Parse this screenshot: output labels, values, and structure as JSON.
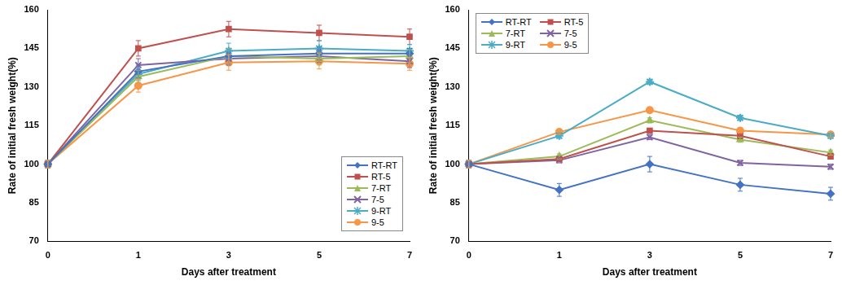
{
  "chart_data": [
    {
      "type": "line",
      "x_label": "Days after treatment",
      "y_label": "Rate of initial fresh weight(%)",
      "categories": [
        "0",
        "1",
        "3",
        "5",
        "7"
      ],
      "ylim": [
        70,
        160
      ],
      "yticks": [
        70,
        85,
        100,
        115,
        130,
        145,
        160
      ],
      "grid": false,
      "legend": "lower right",
      "series": [
        {
          "name": "RT-RT",
          "color": "#4472c4",
          "marker": "diamond",
          "values": [
            100,
            136,
            142,
            143,
            143
          ],
          "errors": [
            1.5,
            2.5,
            3,
            2.5,
            2
          ]
        },
        {
          "name": "RT-5",
          "color": "#c0504d",
          "marker": "square",
          "values": [
            100,
            145,
            152.5,
            151,
            149.5
          ],
          "errors": [
            1.5,
            3,
            3,
            3,
            3
          ]
        },
        {
          "name": "7-RT",
          "color": "#9bbb59",
          "marker": "triangle",
          "values": [
            100,
            134,
            142,
            141,
            142
          ],
          "errors": [
            1.5,
            2.5,
            3,
            2.5,
            2.5
          ]
        },
        {
          "name": "7-5",
          "color": "#8064a2",
          "marker": "x",
          "values": [
            100,
            138.5,
            141,
            142,
            140
          ],
          "errors": [
            1.5,
            2.5,
            2.5,
            2.5,
            2.5
          ]
        },
        {
          "name": "9-RT",
          "color": "#4bacc6",
          "marker": "star",
          "values": [
            100,
            135,
            144,
            145,
            144
          ],
          "errors": [
            1.5,
            2.5,
            3,
            3,
            2.5
          ]
        },
        {
          "name": "9-5",
          "color": "#f79646",
          "marker": "circle",
          "values": [
            100,
            130.5,
            139.5,
            140,
            139
          ],
          "errors": [
            1.5,
            2.5,
            3,
            3,
            2.5
          ]
        }
      ]
    },
    {
      "type": "line",
      "x_label": "Days after treatment",
      "y_label": "Rate of initial fresh weight(%)",
      "categories": [
        "0",
        "1",
        "3",
        "5",
        "7"
      ],
      "ylim": [
        70,
        160
      ],
      "yticks": [
        70,
        85,
        100,
        115,
        130,
        145,
        160
      ],
      "grid": false,
      "legend": "upper left",
      "series": [
        {
          "name": "RT-RT",
          "color": "#4472c4",
          "marker": "diamond",
          "values": [
            100,
            90,
            100,
            92,
            88.5
          ],
          "errors": [
            1.5,
            2.5,
            3,
            2.5,
            2.5
          ]
        },
        {
          "name": "RT-5",
          "color": "#c0504d",
          "marker": "square",
          "values": [
            100,
            102,
            113,
            111,
            103
          ],
          "errors": [
            1.5,
            1,
            1,
            1,
            1
          ]
        },
        {
          "name": "7-RT",
          "color": "#9bbb59",
          "marker": "triangle",
          "values": [
            100,
            103,
            117,
            109.5,
            104.5
          ],
          "errors": [
            1.5,
            1,
            1,
            1,
            1
          ]
        },
        {
          "name": "7-5",
          "color": "#8064a2",
          "marker": "x",
          "values": [
            100,
            101.5,
            110.5,
            100.5,
            99
          ],
          "errors": [
            1.5,
            1,
            1,
            1,
            1
          ]
        },
        {
          "name": "9-RT",
          "color": "#4bacc6",
          "marker": "star",
          "values": [
            100,
            111,
            132,
            118,
            111
          ],
          "errors": [
            1.5,
            1,
            1,
            1,
            1
          ]
        },
        {
          "name": "9-5",
          "color": "#f79646",
          "marker": "circle",
          "values": [
            100,
            112.5,
            121,
            113,
            111.5
          ],
          "errors": [
            1.5,
            1,
            1,
            1,
            1
          ]
        }
      ]
    }
  ]
}
